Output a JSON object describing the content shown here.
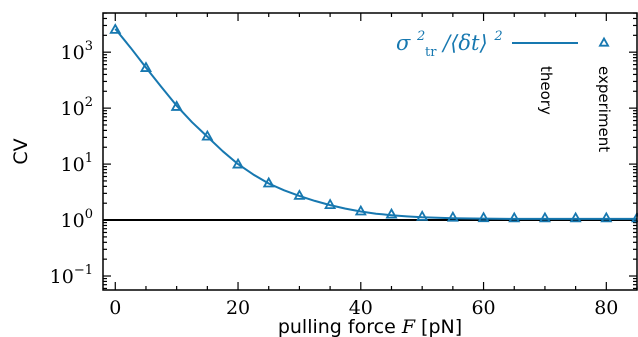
{
  "chart_data": {
    "type": "line",
    "xlabel_prefix": "pulling force",
    "xlabel_var": "F",
    "xlabel_unit": "[pN]",
    "ylabel": "CV",
    "xlim": [
      -2,
      85
    ],
    "ylim_log10": [
      -1.25,
      3.7
    ],
    "yscale": "log",
    "x_ticks": [
      0,
      20,
      40,
      60,
      80
    ],
    "y_ticks": [
      {
        "base": "10",
        "exp": "−1",
        "log": -1
      },
      {
        "base": "10",
        "exp": "0",
        "log": 0
      },
      {
        "base": "10",
        "exp": "1",
        "log": 1
      },
      {
        "base": "10",
        "exp": "2",
        "log": 2
      },
      {
        "base": "10",
        "exp": "3",
        "log": 3
      }
    ],
    "reference_line_y": 1,
    "series": [
      {
        "name": "theory",
        "style": "line",
        "color": "#1778b0",
        "x": [
          0,
          2.5,
          5,
          7.5,
          10,
          12.5,
          15,
          17.5,
          20,
          22.5,
          25,
          27.5,
          30,
          32.5,
          35,
          37.5,
          40,
          42.5,
          45,
          47.5,
          50,
          55,
          60,
          65,
          70,
          75,
          80,
          85
        ],
        "y": [
          2600,
          1200,
          530,
          240,
          110,
          56,
          31,
          17,
          10,
          6.5,
          4.5,
          3.4,
          2.7,
          2.2,
          1.85,
          1.6,
          1.42,
          1.3,
          1.22,
          1.16,
          1.12,
          1.08,
          1.06,
          1.05,
          1.05,
          1.05,
          1.05,
          1.05
        ]
      },
      {
        "name": "experiment",
        "style": "markers",
        "marker": "triangle-open",
        "color": "#1778b0",
        "x": [
          0,
          5,
          10,
          15,
          20,
          25,
          30,
          35,
          40,
          45,
          50,
          55,
          60,
          65,
          70,
          75,
          80,
          85
        ],
        "y": [
          2500,
          520,
          105,
          31,
          9.8,
          4.5,
          2.7,
          1.85,
          1.42,
          1.25,
          1.14,
          1.1,
          1.08,
          1.07,
          1.07,
          1.07,
          1.07,
          1.07
        ]
      }
    ],
    "legend": {
      "position": "top-right",
      "label_formula_main": "σ",
      "label_formula_sup": "2",
      "label_formula_sub": "tr",
      "label_formula_rest": "/⟨δt⟩",
      "label_formula_sup2": "2",
      "theory_label": "theory",
      "experiment_label": "experiment",
      "color": "#1778b0"
    }
  }
}
